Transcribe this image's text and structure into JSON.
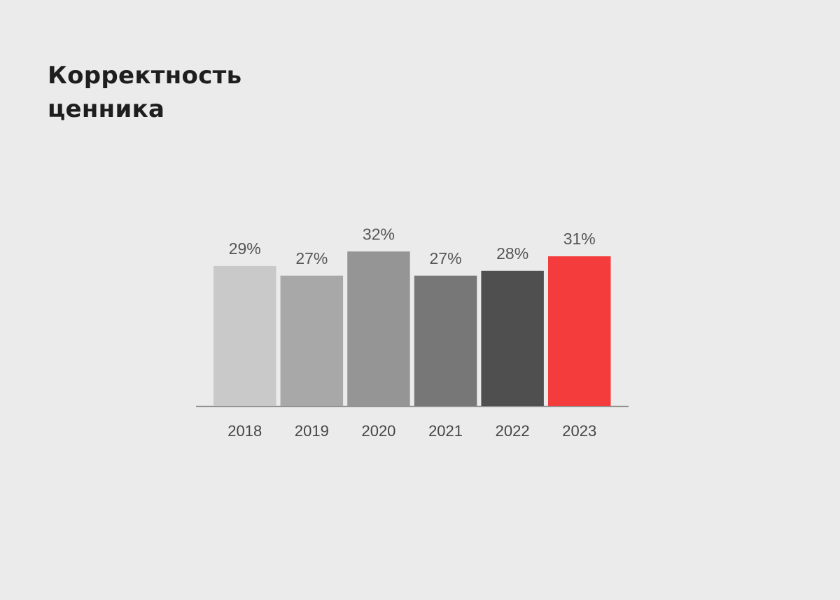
{
  "chart_data": {
    "type": "bar",
    "title": "Корректность ценника",
    "categories": [
      "2018",
      "2019",
      "2020",
      "2021",
      "2022",
      "2023"
    ],
    "values": [
      29,
      27,
      32,
      27,
      28,
      31
    ],
    "value_labels": [
      "29%",
      "27%",
      "32%",
      "27%",
      "28%",
      "31%"
    ],
    "colors": [
      "#c9c9c9",
      "#a8a8a8",
      "#959595",
      "#777777",
      "#4f4f4f",
      "#f53c3c"
    ]
  }
}
